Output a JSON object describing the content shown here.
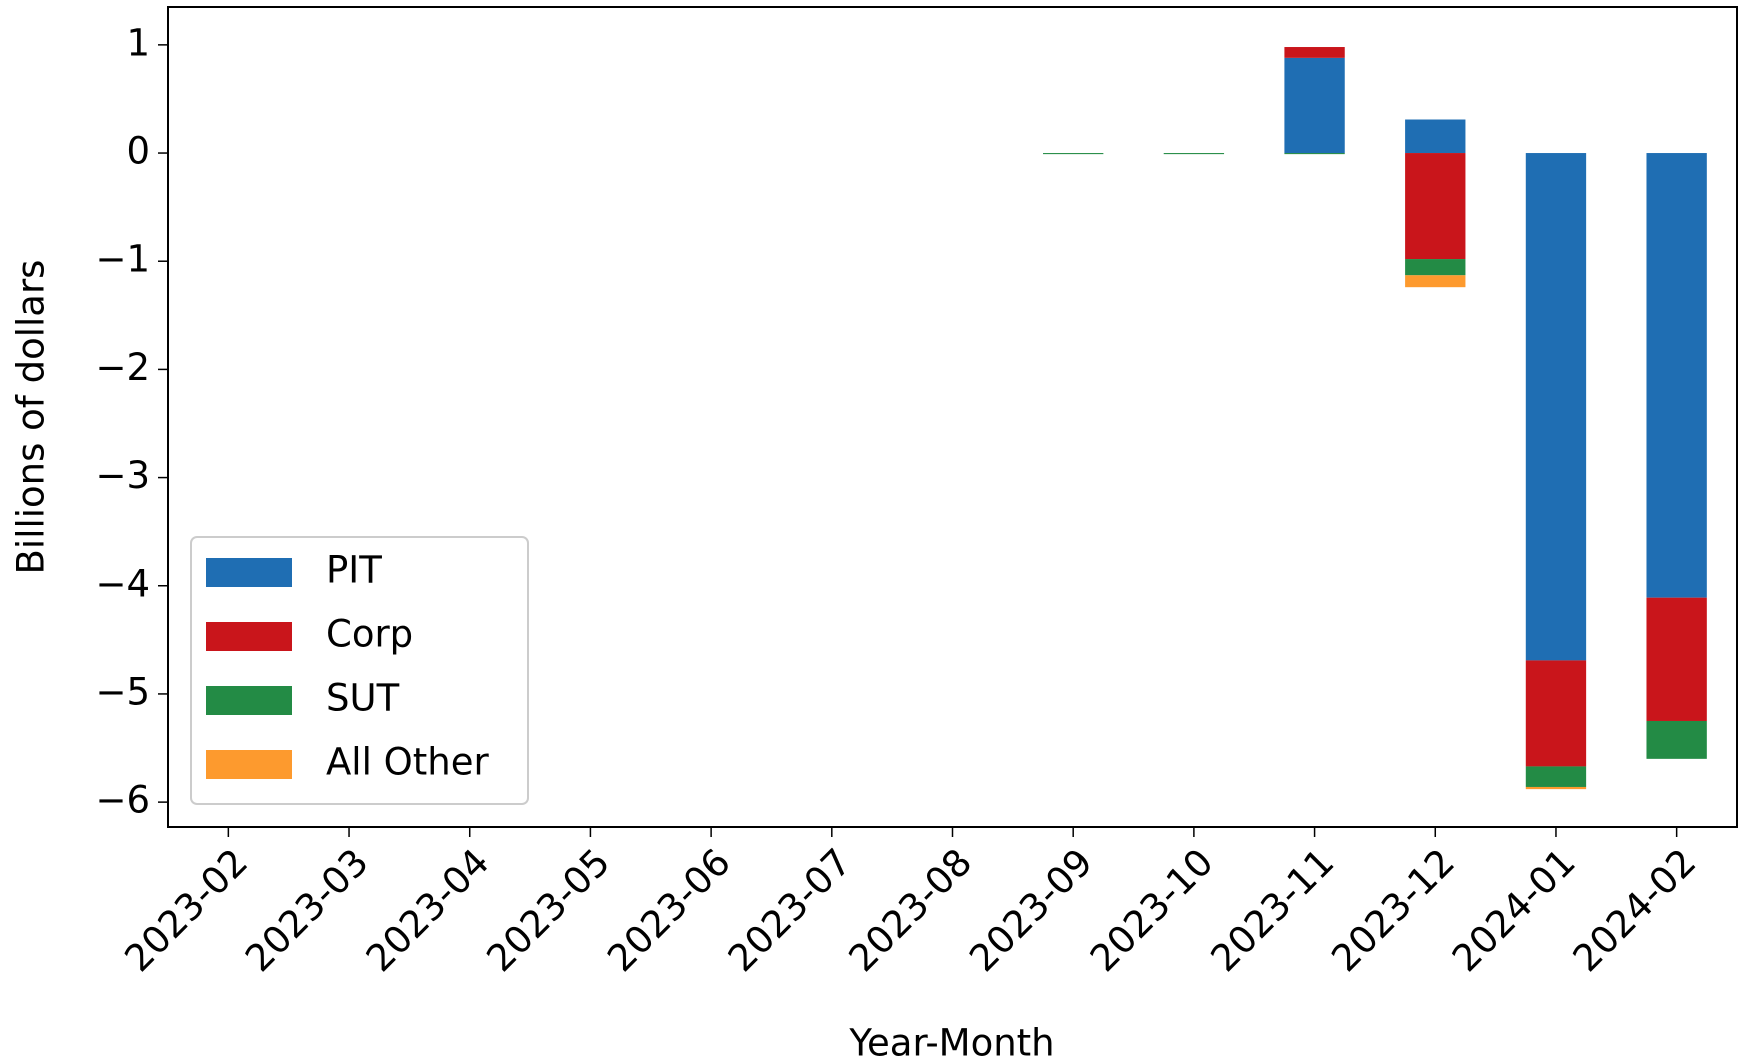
{
  "chart_data": {
    "type": "bar",
    "stacked": true,
    "x_label": "Year-Month",
    "y_label": "Billions of dollars",
    "categories": [
      "2023-02",
      "2023-03",
      "2023-04",
      "2023-05",
      "2023-06",
      "2023-07",
      "2023-08",
      "2023-09",
      "2023-10",
      "2023-11",
      "2023-12",
      "2024-01",
      "2024-02"
    ],
    "series": [
      {
        "name": "PIT",
        "color": "#1f6eb3",
        "values": [
          0,
          0,
          0,
          0,
          0,
          0,
          0,
          0,
          0,
          0.88,
          0.31,
          -4.69,
          -4.11
        ]
      },
      {
        "name": "Corp",
        "color": "#c9151b",
        "values": [
          0,
          0,
          0,
          0,
          0,
          0,
          0,
          0,
          0,
          0.1,
          -0.98,
          -0.98,
          -1.14
        ]
      },
      {
        "name": "SUT",
        "color": "#238b45",
        "values": [
          0,
          0,
          0,
          0,
          0,
          0,
          0,
          -0.01,
          -0.01,
          -0.01,
          -0.15,
          -0.19,
          -0.35
        ]
      },
      {
        "name": "All Other",
        "color": "#fd9a2e",
        "values": [
          0,
          0,
          0,
          0,
          0,
          0,
          0,
          0,
          0,
          0,
          -0.11,
          -0.02,
          0
        ]
      }
    ],
    "ylim": [
      -6.23,
      1.35
    ],
    "yticks": [
      {
        "value": -6,
        "label": "−6"
      },
      {
        "value": -5,
        "label": "−5"
      },
      {
        "value": -4,
        "label": "−4"
      },
      {
        "value": -3,
        "label": "−3"
      },
      {
        "value": -2,
        "label": "−2"
      },
      {
        "value": -1,
        "label": "−1"
      },
      0,
      1
    ],
    "legend": "lower left"
  }
}
